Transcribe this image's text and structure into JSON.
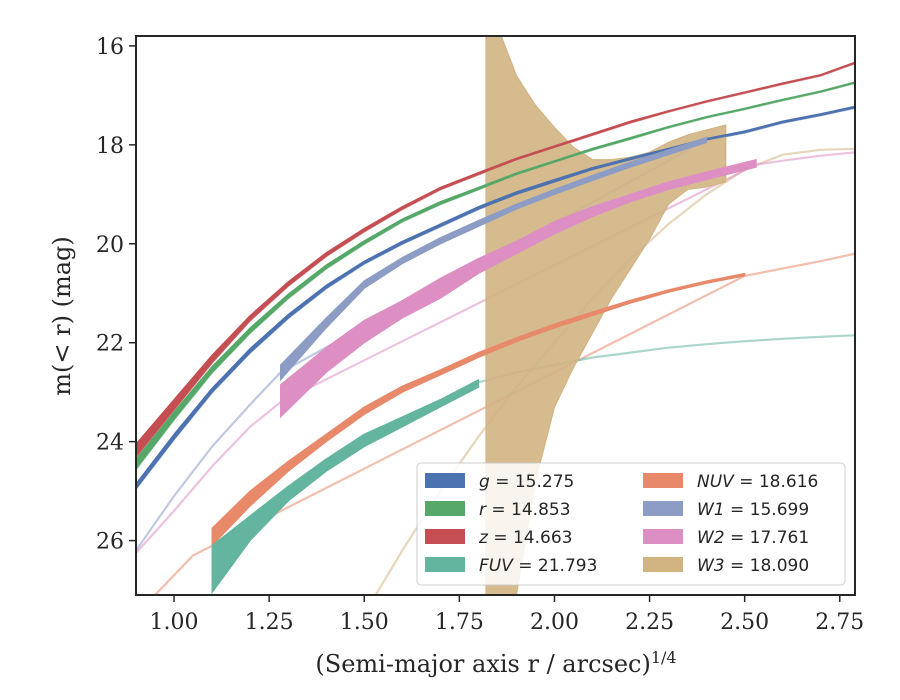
{
  "chart_data": {
    "type": "line",
    "xlabel": "(Semi-major axis r / arcsec)",
    "xlabel_exponent": "1/4",
    "ylabel": "m(< r) (mag)",
    "xlim": [
      0.9,
      2.79
    ],
    "ylim": [
      27.1,
      15.8
    ],
    "y_inverted": true,
    "grid": false,
    "legend_position": "lower-right",
    "x_ticks": [
      "1.00",
      "1.25",
      "1.50",
      "1.75",
      "2.00",
      "2.25",
      "2.50",
      "2.75"
    ],
    "x_tick_values": [
      1.0,
      1.25,
      1.5,
      1.75,
      2.0,
      2.25,
      2.5,
      2.75
    ],
    "y_ticks": [
      "16",
      "18",
      "20",
      "22",
      "24",
      "26"
    ],
    "y_tick_values": [
      16,
      18,
      20,
      22,
      24,
      26
    ],
    "series": [
      {
        "name": "g = 15.275",
        "band": "g",
        "total_mag": "15.275",
        "color": "#4c72b0",
        "faint": [
          [
            0.9,
            24.95
          ],
          [
            1.0,
            23.95
          ],
          [
            1.1,
            23.0
          ],
          [
            1.2,
            22.2
          ],
          [
            1.3,
            21.5
          ],
          [
            1.4,
            20.9
          ],
          [
            1.5,
            20.4
          ],
          [
            1.6,
            20.0
          ],
          [
            1.7,
            19.65
          ],
          [
            1.8,
            19.3
          ],
          [
            1.9,
            19.0
          ],
          [
            2.0,
            18.75
          ],
          [
            2.1,
            18.5
          ],
          [
            2.2,
            18.3
          ],
          [
            2.3,
            18.1
          ],
          [
            2.4,
            17.9
          ],
          [
            2.5,
            17.75
          ],
          [
            2.6,
            17.55
          ],
          [
            2.7,
            17.4
          ],
          [
            2.79,
            17.25
          ]
        ],
        "band_x": [
          0.9,
          1.0,
          1.1,
          1.2,
          1.3,
          1.4,
          1.5,
          1.6,
          1.7,
          1.8,
          1.9,
          2.0,
          2.1,
          2.2,
          2.3,
          2.4,
          2.5,
          2.6,
          2.7,
          2.79
        ],
        "band_upper": [
          24.95,
          23.95,
          23.0,
          22.2,
          21.5,
          20.9,
          20.4,
          20.0,
          19.65,
          19.3,
          19.0,
          18.75,
          18.5,
          18.3,
          18.1,
          17.9,
          17.75,
          17.55,
          17.4,
          17.25
        ],
        "band_lower": [
          24.85,
          23.85,
          22.92,
          22.12,
          21.43,
          20.84,
          20.35,
          19.95,
          19.6,
          19.25,
          18.95,
          18.7,
          18.46,
          18.26,
          18.07,
          17.87,
          17.72,
          17.52,
          17.37,
          17.22
        ]
      },
      {
        "name": "r = 14.853",
        "band": "r",
        "total_mag": "14.853",
        "color": "#55a868",
        "faint": [
          [
            0.9,
            24.55
          ],
          [
            1.0,
            23.55
          ],
          [
            1.1,
            22.6
          ],
          [
            1.2,
            21.8
          ],
          [
            1.3,
            21.1
          ],
          [
            1.4,
            20.5
          ],
          [
            1.5,
            20.0
          ],
          [
            1.6,
            19.55
          ],
          [
            1.7,
            19.2
          ],
          [
            1.8,
            18.9
          ],
          [
            1.9,
            18.6
          ],
          [
            2.0,
            18.35
          ],
          [
            2.1,
            18.1
          ],
          [
            2.2,
            17.88
          ],
          [
            2.3,
            17.65
          ],
          [
            2.4,
            17.45
          ],
          [
            2.5,
            17.28
          ],
          [
            2.6,
            17.1
          ],
          [
            2.7,
            16.93
          ],
          [
            2.79,
            16.75
          ]
        ],
        "band_x": [
          0.9,
          1.0,
          1.1,
          1.2,
          1.3,
          1.4,
          1.5,
          1.6,
          1.7,
          1.8,
          1.9,
          2.0,
          2.1,
          2.2,
          2.3,
          2.4,
          2.5,
          2.6,
          2.7,
          2.79
        ],
        "band_upper": [
          24.55,
          23.55,
          22.6,
          21.8,
          21.1,
          20.5,
          20.0,
          19.55,
          19.2,
          18.9,
          18.6,
          18.35,
          18.1,
          17.88,
          17.65,
          17.45,
          17.28,
          17.1,
          16.93,
          16.75
        ],
        "band_lower": [
          24.35,
          23.4,
          22.48,
          21.7,
          21.02,
          20.43,
          19.94,
          19.5,
          19.15,
          18.86,
          18.57,
          18.32,
          18.07,
          17.85,
          17.63,
          17.43,
          17.26,
          17.08,
          16.91,
          16.73
        ]
      },
      {
        "name": "z = 14.663",
        "band": "z",
        "total_mag": "14.663",
        "color": "#c44e52",
        "faint": [
          [
            0.9,
            24.3
          ],
          [
            1.0,
            23.35
          ],
          [
            1.1,
            22.4
          ],
          [
            1.2,
            21.55
          ],
          [
            1.3,
            20.85
          ],
          [
            1.4,
            20.25
          ],
          [
            1.5,
            19.75
          ],
          [
            1.6,
            19.3
          ],
          [
            1.7,
            18.9
          ],
          [
            1.8,
            18.6
          ],
          [
            1.9,
            18.3
          ],
          [
            2.0,
            18.05
          ],
          [
            2.1,
            17.8
          ],
          [
            2.2,
            17.55
          ],
          [
            2.3,
            17.33
          ],
          [
            2.4,
            17.13
          ],
          [
            2.5,
            16.95
          ],
          [
            2.6,
            16.77
          ],
          [
            2.7,
            16.6
          ],
          [
            2.79,
            16.35
          ]
        ],
        "band_x": [
          0.9,
          1.0,
          1.1,
          1.2,
          1.3,
          1.4,
          1.5,
          1.6,
          1.7,
          1.8,
          1.9,
          2.0,
          2.1,
          2.2,
          2.3,
          2.4,
          2.5,
          2.6,
          2.7,
          2.79
        ],
        "band_upper": [
          24.3,
          23.35,
          22.4,
          21.55,
          20.85,
          20.25,
          19.75,
          19.3,
          18.9,
          18.6,
          18.3,
          18.05,
          17.8,
          17.55,
          17.33,
          17.13,
          16.95,
          16.77,
          16.6,
          16.35
        ],
        "band_lower": [
          24.05,
          23.15,
          22.25,
          21.45,
          20.77,
          20.18,
          19.69,
          19.25,
          18.86,
          18.56,
          18.27,
          18.02,
          17.77,
          17.52,
          17.31,
          17.11,
          16.93,
          16.75,
          16.58,
          16.33
        ]
      },
      {
        "name": "FUV = 21.793",
        "band": "FUV",
        "total_mag": "21.793",
        "color": "#64b5a0",
        "faint": [
          [
            1.8,
            22.8
          ],
          [
            1.9,
            22.6
          ],
          [
            2.0,
            22.45
          ],
          [
            2.1,
            22.3
          ],
          [
            2.2,
            22.2
          ],
          [
            2.3,
            22.1
          ],
          [
            2.4,
            22.03
          ],
          [
            2.5,
            21.97
          ],
          [
            2.6,
            21.92
          ],
          [
            2.7,
            21.88
          ],
          [
            2.79,
            21.85
          ]
        ],
        "band_x": [
          1.1,
          1.2,
          1.3,
          1.4,
          1.5,
          1.6,
          1.7,
          1.8
        ],
        "band_upper": [
          27.05,
          26.0,
          25.2,
          24.6,
          24.1,
          23.7,
          23.3,
          22.9
        ],
        "band_lower": [
          26.1,
          25.5,
          24.9,
          24.35,
          23.85,
          23.5,
          23.15,
          22.75
        ]
      },
      {
        "name": "NUV = 18.616",
        "band": "NUV",
        "total_mag": "18.616",
        "color": "#e8896a",
        "faint": [
          [
            0.95,
            27.1
          ],
          [
            1.0,
            26.7
          ],
          [
            1.05,
            26.3
          ],
          [
            2.5,
            20.65
          ],
          [
            2.6,
            20.5
          ],
          [
            2.7,
            20.35
          ],
          [
            2.79,
            20.2
          ]
        ],
        "band_x": [
          1.1,
          1.2,
          1.3,
          1.4,
          1.5,
          1.6,
          1.7,
          1.8,
          1.9,
          2.0,
          2.1,
          2.2,
          2.3,
          2.4,
          2.5
        ],
        "band_upper": [
          26.1,
          25.3,
          24.6,
          24.0,
          23.45,
          23.0,
          22.65,
          22.3,
          21.98,
          21.7,
          21.45,
          21.2,
          20.98,
          20.8,
          20.65
        ],
        "band_lower": [
          25.75,
          25.0,
          24.4,
          23.85,
          23.3,
          22.88,
          22.55,
          22.2,
          21.9,
          21.62,
          21.38,
          21.14,
          20.93,
          20.75,
          20.6
        ]
      },
      {
        "name": "W1 = 15.699",
        "band": "W1",
        "total_mag": "15.699",
        "color": "#8c9cc4",
        "faint": [
          [
            0.9,
            26.2
          ],
          [
            1.0,
            25.1
          ],
          [
            1.1,
            24.1
          ],
          [
            1.2,
            23.25
          ],
          [
            1.28,
            22.6
          ],
          [
            2.4,
            17.9
          ],
          [
            2.5,
            17.75
          ],
          [
            2.6,
            17.55
          ],
          [
            2.7,
            17.4
          ],
          [
            2.79,
            17.25
          ]
        ],
        "band_x": [
          1.28,
          1.4,
          1.5,
          1.6,
          1.7,
          1.8,
          1.9,
          2.0,
          2.1,
          2.2,
          2.3,
          2.4
        ],
        "band_upper": [
          22.75,
          21.7,
          20.9,
          20.4,
          20.0,
          19.65,
          19.3,
          19.0,
          18.72,
          18.45,
          18.2,
          17.95
        ],
        "band_lower": [
          22.45,
          21.5,
          20.75,
          20.28,
          19.88,
          19.53,
          19.2,
          18.9,
          18.62,
          18.35,
          18.1,
          17.85
        ]
      },
      {
        "name": "W2 = 17.761",
        "band": "W2",
        "total_mag": "17.761",
        "color": "#dd8fc4",
        "faint": [
          [
            0.9,
            26.25
          ],
          [
            1.0,
            25.4
          ],
          [
            1.1,
            24.5
          ],
          [
            1.2,
            23.7
          ],
          [
            1.28,
            23.2
          ],
          [
            2.53,
            18.4
          ],
          [
            2.6,
            18.32
          ],
          [
            2.7,
            18.22
          ],
          [
            2.79,
            18.15
          ]
        ],
        "band_x": [
          1.28,
          1.4,
          1.5,
          1.6,
          1.7,
          1.8,
          1.9,
          2.0,
          2.1,
          2.2,
          2.3,
          2.4,
          2.53
        ],
        "band_upper": [
          23.5,
          22.6,
          22.0,
          21.5,
          21.1,
          20.6,
          20.2,
          19.8,
          19.45,
          19.15,
          18.9,
          18.7,
          18.45
        ],
        "band_lower": [
          22.85,
          22.1,
          21.55,
          21.15,
          20.7,
          20.3,
          19.95,
          19.55,
          19.25,
          19.0,
          18.75,
          18.55,
          18.3
        ]
      },
      {
        "name": "W3 = 18.090",
        "band": "W3",
        "total_mag": "18.090",
        "color": "#d2b483",
        "faint": [
          [
            1.53,
            27.1
          ],
          [
            1.6,
            26.2
          ],
          [
            1.7,
            25.0
          ],
          [
            1.8,
            23.9
          ],
          [
            1.9,
            22.9
          ],
          [
            2.0,
            22.0
          ],
          [
            2.1,
            21.1
          ],
          [
            2.2,
            20.3
          ],
          [
            2.3,
            19.6
          ],
          [
            2.4,
            19.0
          ],
          [
            2.5,
            18.5
          ],
          [
            2.6,
            18.2
          ],
          [
            2.7,
            18.1
          ],
          [
            2.79,
            18.08
          ]
        ],
        "band_x": [
          1.82,
          1.86,
          1.9,
          1.95,
          2.0,
          2.05,
          2.1,
          2.15,
          2.2,
          2.25,
          2.3,
          2.35,
          2.4,
          2.45
        ],
        "band_upper": [
          27.1,
          27.1,
          27.1,
          24.8,
          23.3,
          22.5,
          21.8,
          21.1,
          20.5,
          19.9,
          19.2,
          18.9,
          18.85,
          18.75
        ],
        "band_lower": [
          15.8,
          15.8,
          16.6,
          17.2,
          17.65,
          18.05,
          18.3,
          18.3,
          18.25,
          18.15,
          17.95,
          17.8,
          17.7,
          17.6
        ]
      }
    ]
  }
}
